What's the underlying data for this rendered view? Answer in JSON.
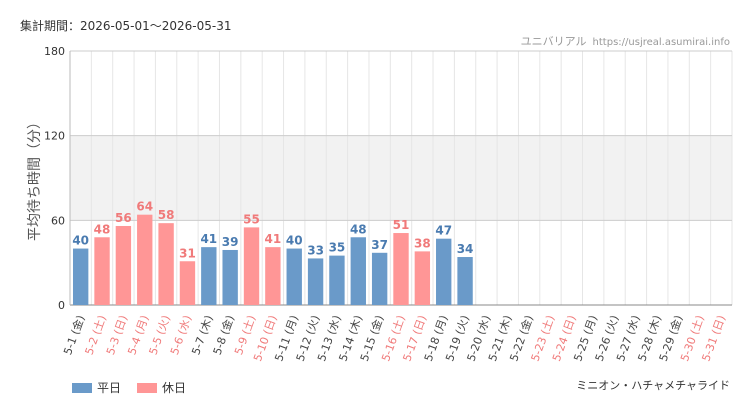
{
  "header": {
    "period": "集計期間：2026-05-01〜2026-05-31",
    "source": "ユニバリアル",
    "site": "https://usjreal.asumirai.info"
  },
  "footer": {
    "attraction": "ミニオン・ハチャメチャライド"
  },
  "colors": {
    "weekday": "#6a9ac9",
    "holiday": "#ff9696",
    "weekday_text": "#4a7bb0",
    "holiday_text": "#f07a7a",
    "grid": "#e6e6e6",
    "band": "#f2f2f2"
  },
  "chart_data": {
    "type": "bar",
    "ylabel": "平均待ち時間（分）",
    "ylim": [
      0,
      180
    ],
    "yticks": [
      0,
      60,
      120,
      180
    ],
    "bands": [
      [
        60,
        120
      ]
    ],
    "grid": true,
    "legend": {
      "position": "bottom-left",
      "entries": [
        {
          "name": "平日",
          "kind": "weekday"
        },
        {
          "name": "休日",
          "kind": "holiday"
        }
      ]
    },
    "categories": [
      "5-1 (金)",
      "5-2 (土)",
      "5-3 (日)",
      "5-4 (月)",
      "5-5 (火)",
      "5-6 (水)",
      "5-7 (木)",
      "5-8 (金)",
      "5-9 (土)",
      "5-10 (日)",
      "5-11 (月)",
      "5-12 (火)",
      "5-13 (水)",
      "5-14 (木)",
      "5-15 (金)",
      "5-16 (土)",
      "5-17 (日)",
      "5-18 (月)",
      "5-19 (火)",
      "5-20 (水)",
      "5-21 (木)",
      "5-22 (金)",
      "5-23 (土)",
      "5-24 (日)",
      "5-25 (月)",
      "5-26 (火)",
      "5-27 (水)",
      "5-28 (木)",
      "5-29 (金)",
      "5-30 (土)",
      "5-31 (日)"
    ],
    "day_type": [
      "weekday",
      "holiday",
      "holiday",
      "holiday",
      "holiday",
      "holiday",
      "weekday",
      "weekday",
      "holiday",
      "holiday",
      "weekday",
      "weekday",
      "weekday",
      "weekday",
      "weekday",
      "holiday",
      "holiday",
      "weekday",
      "weekday",
      "weekday",
      "weekday",
      "weekday",
      "holiday",
      "holiday",
      "weekday",
      "weekday",
      "weekday",
      "weekday",
      "weekday",
      "holiday",
      "holiday"
    ],
    "values": [
      40,
      48,
      56,
      64,
      58,
      31,
      41,
      39,
      55,
      41,
      40,
      33,
      35,
      48,
      37,
      51,
      38,
      47,
      34,
      null,
      null,
      null,
      null,
      null,
      null,
      null,
      null,
      null,
      null,
      null,
      null
    ]
  }
}
